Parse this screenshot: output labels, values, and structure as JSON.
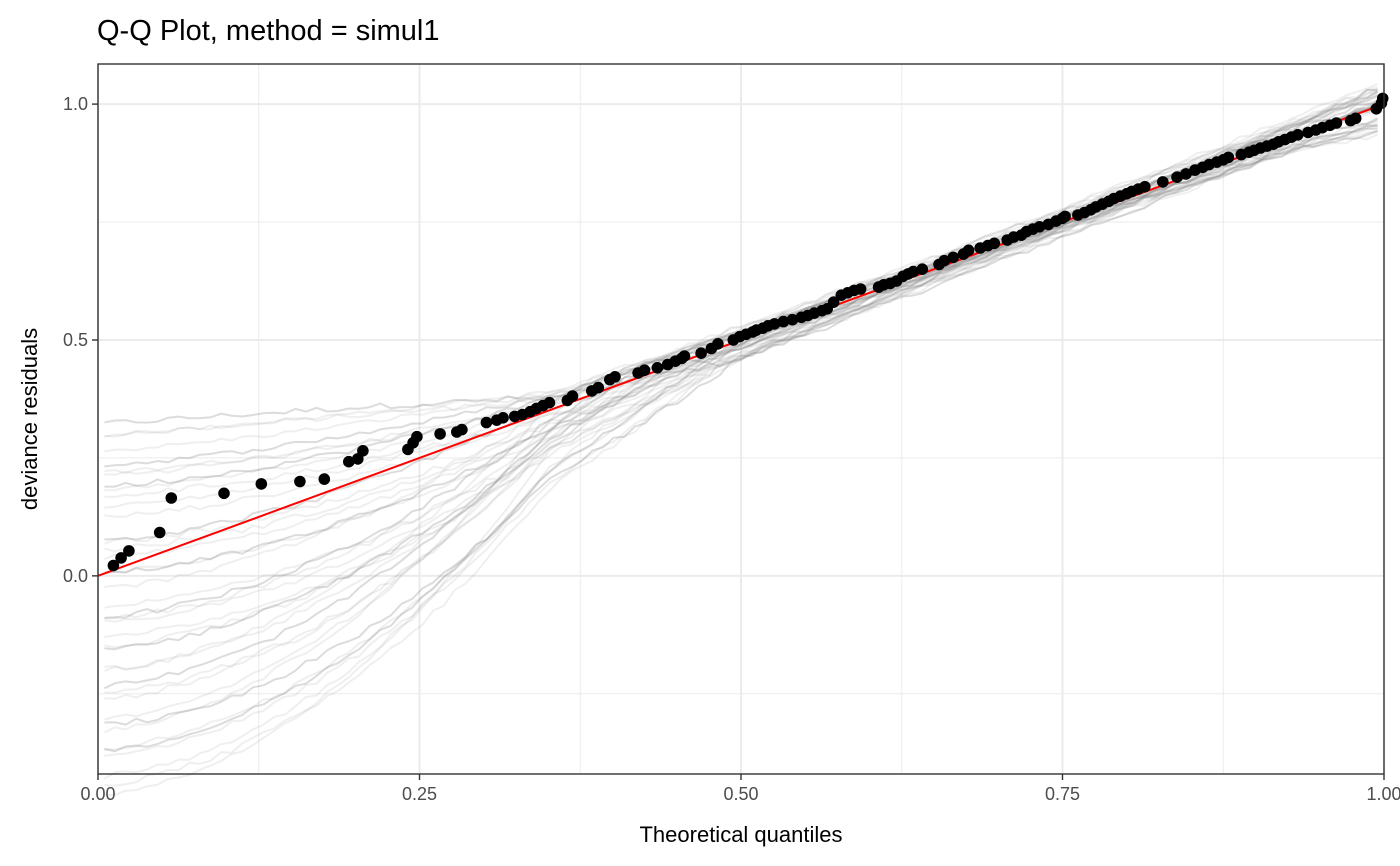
{
  "chart_data": {
    "type": "scatter",
    "title": "Q-Q Plot, method = simul1",
    "xlabel": "Theoretical quantiles",
    "ylabel": "deviance residuals",
    "xlim": [
      0,
      1
    ],
    "ylim": [
      -0.42,
      1.085
    ],
    "x_ticks": [
      0,
      0.25,
      0.5,
      0.75,
      1
    ],
    "x_tick_labels": [
      "0.00",
      "0.25",
      "0.50",
      "0.75",
      "1.00"
    ],
    "y_ticks": [
      0,
      0.5,
      1
    ],
    "y_tick_labels": [
      "0.0",
      "0.5",
      "1.0"
    ],
    "grid": true,
    "reference_line": {
      "from": [
        0,
        0
      ],
      "to": [
        1,
        1
      ],
      "color": "#ff0000"
    },
    "point_color": "#000000",
    "simulation_line_color": "#808080",
    "simulated_envelope_count": 40,
    "observed_points": {
      "x": [
        0.012,
        0.018,
        0.024,
        0.048,
        0.057,
        0.098,
        0.127,
        0.157,
        0.176,
        0.195,
        0.202,
        0.206,
        0.241,
        0.245,
        0.248,
        0.266,
        0.279,
        0.283,
        0.302,
        0.31,
        0.315,
        0.324,
        0.33,
        0.336,
        0.341,
        0.346,
        0.351,
        0.365,
        0.369,
        0.384,
        0.389,
        0.398,
        0.402,
        0.42,
        0.425,
        0.435,
        0.443,
        0.449,
        0.454,
        0.456,
        0.469,
        0.477,
        0.482,
        0.494,
        0.499,
        0.504,
        0.509,
        0.512,
        0.517,
        0.521,
        0.526,
        0.533,
        0.54,
        0.547,
        0.552,
        0.557,
        0.563,
        0.567,
        0.572,
        0.578,
        0.583,
        0.588,
        0.593,
        0.607,
        0.611,
        0.616,
        0.621,
        0.626,
        0.63,
        0.634,
        0.641,
        0.654,
        0.658,
        0.665,
        0.673,
        0.677,
        0.686,
        0.692,
        0.697,
        0.707,
        0.712,
        0.718,
        0.722,
        0.727,
        0.732,
        0.739,
        0.745,
        0.75,
        0.752,
        0.762,
        0.767,
        0.772,
        0.776,
        0.781,
        0.786,
        0.79,
        0.795,
        0.8,
        0.804,
        0.809,
        0.814,
        0.828,
        0.839,
        0.846,
        0.853,
        0.859,
        0.864,
        0.87,
        0.875,
        0.879,
        0.889,
        0.895,
        0.899,
        0.904,
        0.909,
        0.914,
        0.918,
        0.923,
        0.928,
        0.933,
        0.941,
        0.947,
        0.952,
        0.958,
        0.963,
        0.974,
        0.978,
        0.994,
        0.998,
        0.999
      ],
      "y": [
        0.022,
        0.038,
        0.053,
        0.092,
        0.165,
        0.175,
        0.195,
        0.2,
        0.205,
        0.242,
        0.248,
        0.265,
        0.268,
        0.282,
        0.295,
        0.301,
        0.305,
        0.31,
        0.325,
        0.33,
        0.335,
        0.338,
        0.342,
        0.348,
        0.355,
        0.361,
        0.367,
        0.372,
        0.381,
        0.392,
        0.399,
        0.416,
        0.422,
        0.43,
        0.436,
        0.441,
        0.448,
        0.455,
        0.461,
        0.466,
        0.472,
        0.482,
        0.492,
        0.5,
        0.507,
        0.512,
        0.517,
        0.521,
        0.525,
        0.53,
        0.534,
        0.539,
        0.543,
        0.548,
        0.552,
        0.557,
        0.562,
        0.566,
        0.58,
        0.595,
        0.6,
        0.605,
        0.608,
        0.612,
        0.617,
        0.62,
        0.625,
        0.635,
        0.64,
        0.645,
        0.65,
        0.66,
        0.668,
        0.675,
        0.682,
        0.69,
        0.695,
        0.7,
        0.705,
        0.712,
        0.718,
        0.722,
        0.73,
        0.735,
        0.74,
        0.745,
        0.752,
        0.758,
        0.762,
        0.765,
        0.77,
        0.776,
        0.782,
        0.788,
        0.794,
        0.8,
        0.805,
        0.81,
        0.815,
        0.82,
        0.825,
        0.835,
        0.845,
        0.852,
        0.86,
        0.866,
        0.872,
        0.877,
        0.882,
        0.887,
        0.893,
        0.898,
        0.902,
        0.907,
        0.911,
        0.915,
        0.92,
        0.925,
        0.93,
        0.935,
        0.94,
        0.945,
        0.95,
        0.955,
        0.96,
        0.965,
        0.97,
        0.99,
        1.002,
        1.012
      ]
    }
  }
}
